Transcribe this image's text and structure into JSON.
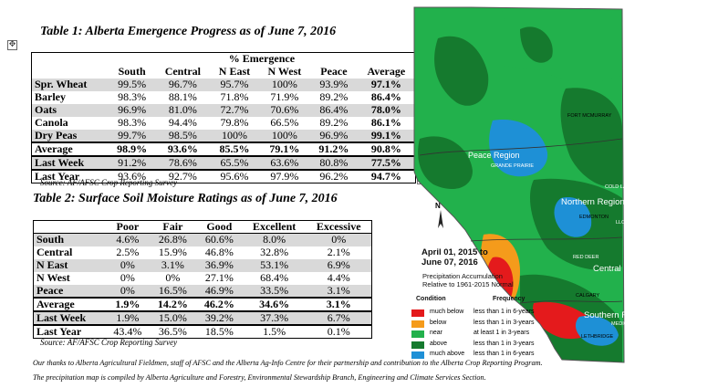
{
  "table1": {
    "title": "Table 1: Alberta Emergence Progress as of June 7, 2016",
    "group_header": "% Emergence",
    "columns": [
      "South",
      "Central",
      "N East",
      "N West",
      "Peace",
      "Average"
    ],
    "rows": [
      {
        "label": "Spr. Wheat",
        "values": [
          "99.5%",
          "96.7%",
          "95.7%",
          "100%",
          "93.9%",
          "97.1%"
        ]
      },
      {
        "label": "Barley",
        "values": [
          "98.3%",
          "88.1%",
          "71.8%",
          "71.9%",
          "89.2%",
          "86.4%"
        ]
      },
      {
        "label": "Oats",
        "values": [
          "96.9%",
          "81.0%",
          "72.7%",
          "70.6%",
          "86.4%",
          "78.0%"
        ]
      },
      {
        "label": "Canola",
        "values": [
          "98.3%",
          "94.4%",
          "79.8%",
          "66.5%",
          "89.2%",
          "86.1%"
        ]
      },
      {
        "label": "Dry Peas",
        "values": [
          "99.7%",
          "98.5%",
          "100%",
          "100%",
          "96.9%",
          "99.1%"
        ]
      },
      {
        "label": "Average",
        "values": [
          "98.9%",
          "93.6%",
          "85.5%",
          "79.1%",
          "91.2%",
          "90.8%"
        ]
      },
      {
        "label": "Last Week",
        "values": [
          "91.2%",
          "78.6%",
          "65.5%",
          "63.6%",
          "80.8%",
          "77.5%"
        ]
      },
      {
        "label": "Last Year",
        "values": [
          "93.6%",
          "92.7%",
          "95.6%",
          "97.9%",
          "96.2%",
          "94.7%"
        ]
      }
    ],
    "source": "Source: AF/AFSC Crop Reporting Survey"
  },
  "table2": {
    "title": "Table 2: Surface Soil Moisture Ratings as of June 7, 2016",
    "columns": [
      "Poor",
      "Fair",
      "Good",
      "Excellent",
      "Excessive"
    ],
    "rows": [
      {
        "label": "South",
        "values": [
          "4.6%",
          "26.8%",
          "60.6%",
          "8.0%",
          "0%"
        ]
      },
      {
        "label": "Central",
        "values": [
          "2.5%",
          "15.9%",
          "46.8%",
          "32.8%",
          "2.1%"
        ]
      },
      {
        "label": "N East",
        "values": [
          "0%",
          "3.1%",
          "36.9%",
          "53.1%",
          "6.9%"
        ]
      },
      {
        "label": "N West",
        "values": [
          "0%",
          "0%",
          "27.1%",
          "68.4%",
          "4.4%"
        ]
      },
      {
        "label": "Peace",
        "values": [
          "0%",
          "16.5%",
          "46.9%",
          "33.5%",
          "3.1%"
        ]
      },
      {
        "label": "Average",
        "values": [
          "1.9%",
          "14.2%",
          "46.2%",
          "34.6%",
          "3.1%"
        ]
      },
      {
        "label": "Last Week",
        "values": [
          "1.9%",
          "15.0%",
          "39.2%",
          "37.3%",
          "6.7%"
        ]
      },
      {
        "label": "Last Year",
        "values": [
          "43.4%",
          "36.5%",
          "18.5%",
          "1.5%",
          "0.1%"
        ]
      }
    ],
    "source": "Source: AF/AFSC Crop Reporting Survey"
  },
  "footnotes": [
    "Our thanks to Alberta Agricultural Fieldmen, staff of AFSC and the Alberta Ag-Info Centre for their partnership and contribution to the Alberta Crop Reporting Program.",
    "The precipitation map is compiled by Alberta Agriculture and Forestry, Environmental Stewardship Branch, Engineering and Climate Services Section."
  ],
  "map": {
    "title_line1": "April 01, 2015 to",
    "title_line2": "June 07, 2016",
    "subtitle_line1": "Precipitation Accumulation",
    "subtitle_line2": "Relative to 1961-2015 Normal",
    "legend_header_condition": "Condition",
    "legend_header_frequency": "Frequency",
    "legend": [
      {
        "condition": "much below",
        "frequency": "less than 1 in 6-years",
        "color": "#e41a1c"
      },
      {
        "condition": "below",
        "frequency": "less than 1 in 3-years",
        "color": "#f59b1b"
      },
      {
        "condition": "near",
        "frequency": "at least 1 in 3-years",
        "color": "#22b14c"
      },
      {
        "condition": "above",
        "frequency": "less than 1 in 3-years",
        "color": "#157a2e"
      },
      {
        "condition": "much above",
        "frequency": "less than 1 in 6-years",
        "color": "#1e90d6"
      }
    ],
    "north_arrow": "N",
    "regions": {
      "peace": "Peace Region",
      "northern": "Northern Region",
      "central": "Central Region",
      "southern": "Southern Region"
    },
    "cities": {
      "fort_mcmurray": "FORT MCMURRAY",
      "grande_prairie": "GRANDE PRAIRIE",
      "cold_lake": "COLD LAKE",
      "edmonton": "EDMONTON",
      "lloydminster": "LLOYDMINSTER",
      "red_deer": "RED DEER",
      "calgary": "CALGARY",
      "medicine_hat": "MEDICINE HAT",
      "lethbridge": "LETHBRIDGE"
    }
  }
}
